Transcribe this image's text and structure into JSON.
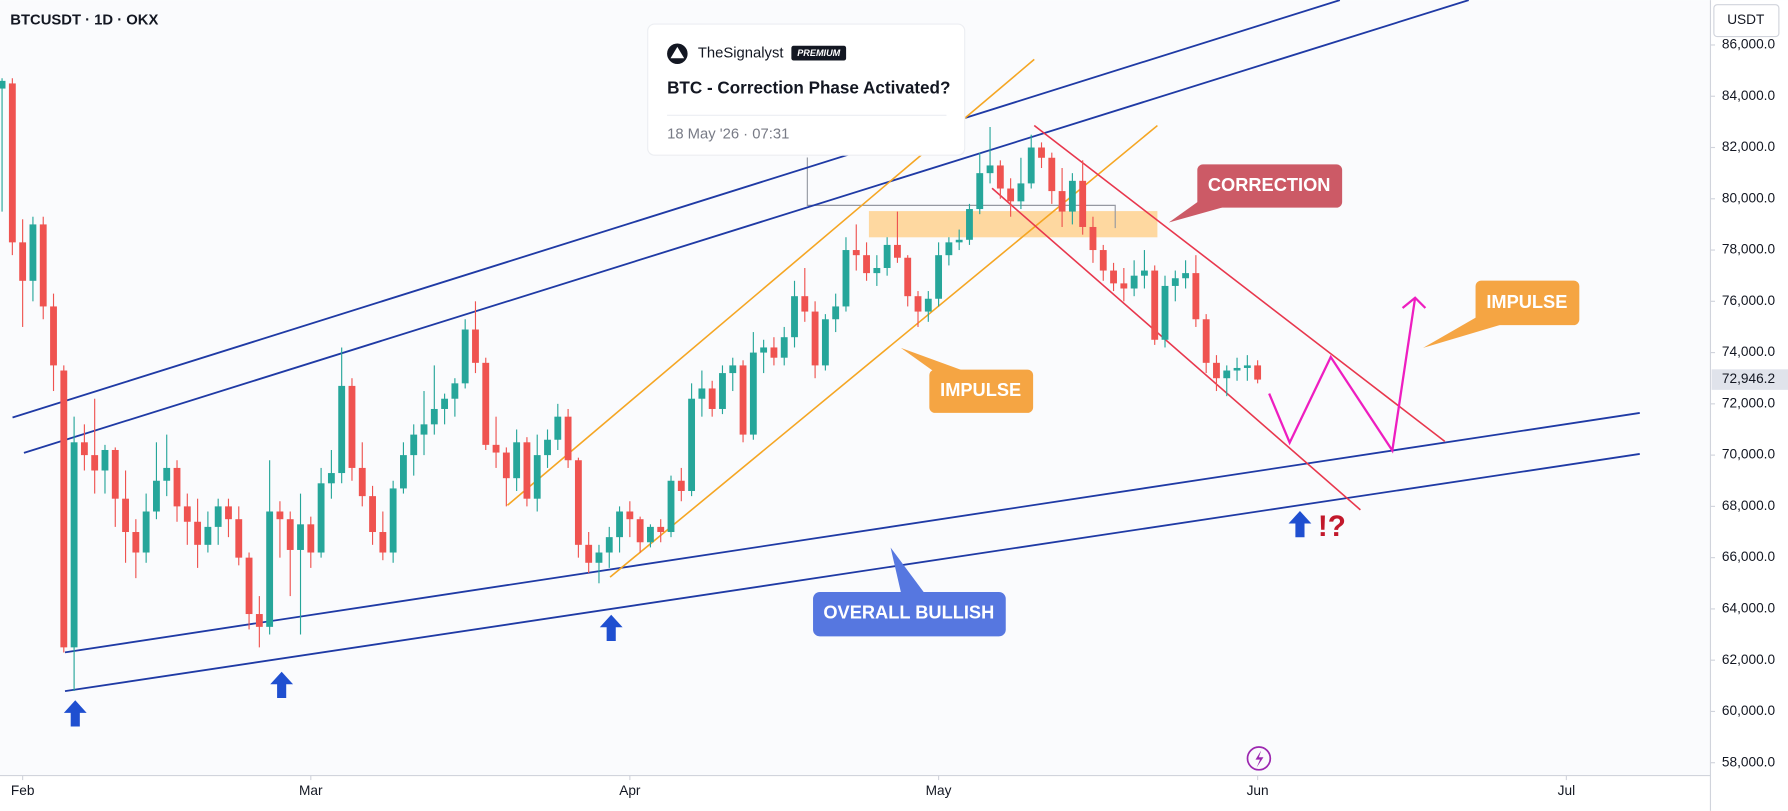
{
  "header": {
    "symbol": "BTCUSDT · 1D · OKX",
    "currency": "USDT"
  },
  "idea_card": {
    "author": "TheSignalyst",
    "badge": "PREMIUM",
    "title": "BTC - Correction Phase Activated?",
    "date": "18 May '26 · 07:31"
  },
  "chart_data": {
    "type": "candlestick",
    "x": [
      -2,
      -1,
      0,
      1,
      2,
      3,
      4,
      5,
      6,
      7,
      8,
      9,
      10,
      11,
      12,
      13,
      14,
      15,
      16,
      17,
      18,
      19,
      20,
      21,
      22,
      23,
      24,
      25,
      26,
      27,
      28,
      29,
      30,
      31,
      32,
      33,
      34,
      35,
      36,
      37,
      38,
      39,
      40,
      41,
      42,
      43,
      44,
      45,
      46,
      47,
      48,
      49,
      50,
      51,
      52,
      53,
      54,
      55,
      56,
      57,
      58,
      59,
      60,
      61,
      62,
      63,
      64,
      65,
      66,
      67,
      68,
      69,
      70,
      71,
      72,
      73,
      74,
      75,
      76,
      77,
      78,
      79,
      80,
      81,
      82,
      83,
      84,
      85,
      86,
      87,
      88,
      89,
      90,
      91,
      92,
      93,
      94,
      95,
      96,
      97,
      98,
      99,
      100,
      101,
      102,
      103,
      104,
      105,
      106,
      107,
      108,
      109,
      110,
      111,
      112,
      113,
      114,
      115,
      116,
      117,
      118,
      119,
      120
    ],
    "open": [
      84300,
      84500,
      78300,
      76800,
      79000,
      75800,
      73300,
      62500,
      70500,
      70000,
      69400,
      70200,
      68300,
      67000,
      66200,
      67800,
      69000,
      69500,
      68000,
      67400,
      66500,
      67200,
      68000,
      67500,
      66000,
      63800,
      63300,
      67800,
      67500,
      66300,
      67300,
      66200,
      68900,
      69300,
      72700,
      69500,
      68400,
      67000,
      66200,
      68700,
      70000,
      70800,
      71200,
      71800,
      72200,
      72800,
      74900,
      73600,
      70400,
      70100,
      69100,
      70500,
      68300,
      70000,
      70600,
      71500,
      69800,
      66500,
      65800,
      66200,
      66800,
      67800,
      67500,
      66600,
      67200,
      67000,
      69000,
      68600,
      72200,
      72600,
      71800,
      73200,
      73500,
      70800,
      74000,
      74200,
      73800,
      74600,
      76200,
      75600,
      73500,
      75300,
      75800,
      78000,
      77800,
      77100,
      77300,
      78200,
      77700,
      76200,
      75600,
      76100,
      77800,
      78300,
      78400,
      79600,
      81000,
      81300,
      80400,
      79900,
      80600,
      82000,
      81600,
      80300,
      79500,
      80700,
      78900,
      78000,
      77200,
      76700,
      76500,
      77000,
      77200,
      74500,
      76600,
      76900,
      77100,
      75300,
      73600,
      73000,
      73300,
      73400,
      73500
    ],
    "high": [
      84700,
      84700,
      79200,
      79300,
      79300,
      76300,
      73500,
      71500,
      71200,
      72200,
      70400,
      70300,
      69400,
      67500,
      68500,
      70500,
      70800,
      69800,
      68500,
      68300,
      67800,
      68300,
      68300,
      68000,
      66200,
      64500,
      69800,
      68200,
      67800,
      68500,
      67600,
      69500,
      70200,
      74200,
      73000,
      70500,
      68800,
      67800,
      69000,
      70500,
      71200,
      72500,
      73500,
      72400,
      73000,
      75300,
      76000,
      73800,
      71500,
      70300,
      71000,
      70700,
      70800,
      71000,
      72000,
      71800,
      69900,
      67000,
      66500,
      67200,
      68000,
      68200,
      67600,
      67300,
      67500,
      69200,
      69500,
      72800,
      73300,
      72900,
      73500,
      73800,
      73700,
      74800,
      74500,
      74600,
      75000,
      76800,
      77300,
      76000,
      75500,
      76300,
      78500,
      79000,
      78300,
      77800,
      78500,
      79500,
      77800,
      76400,
      76400,
      78300,
      78500,
      78800,
      79800,
      81800,
      82800,
      81500,
      80800,
      81600,
      82500,
      82200,
      81800,
      81200,
      81000,
      81500,
      79300,
      78200,
      77500,
      77300,
      77600,
      78000,
      77400,
      77000,
      77200,
      77600,
      77800,
      75500,
      73900,
      73500,
      73800,
      73900,
      73700
    ],
    "low": [
      79500,
      77800,
      75000,
      76000,
      75300,
      72500,
      62300,
      60800,
      69400,
      68500,
      68500,
      67200,
      65800,
      65200,
      65800,
      67500,
      68400,
      67400,
      66500,
      65600,
      66200,
      66500,
      66800,
      65700,
      63200,
      62500,
      63000,
      66000,
      64500,
      63000,
      65600,
      66000,
      68300,
      68900,
      69000,
      68000,
      66500,
      65900,
      65800,
      68500,
      69200,
      70000,
      70800,
      71200,
      71500,
      72600,
      73200,
      70200,
      69500,
      68000,
      68600,
      68000,
      67800,
      69500,
      70200,
      69500,
      66000,
      65400,
      65000,
      65600,
      66200,
      66800,
      66200,
      66400,
      66600,
      66800,
      68200,
      68400,
      71500,
      71500,
      71600,
      72500,
      70500,
      70600,
      73200,
      73500,
      73500,
      74200,
      75200,
      73000,
      73300,
      74800,
      75600,
      77200,
      76800,
      76600,
      77000,
      77500,
      75800,
      75000,
      75200,
      75800,
      77400,
      78000,
      78200,
      79400,
      80600,
      80000,
      79300,
      79600,
      80400,
      81200,
      79800,
      78900,
      79000,
      78600,
      77500,
      76800,
      76400,
      76000,
      76200,
      76500,
      74300,
      74200,
      76000,
      76500,
      75000,
      73200,
      72500,
      72300,
      72900,
      72900,
      72800
    ],
    "close": [
      84600,
      78300,
      76800,
      79000,
      75800,
      73500,
      62500,
      70500,
      70000,
      69400,
      70200,
      68300,
      67000,
      66200,
      67800,
      69000,
      69500,
      68000,
      67400,
      66500,
      67200,
      68000,
      67500,
      66000,
      63800,
      63300,
      67800,
      67500,
      66300,
      67300,
      66200,
      68900,
      69300,
      72700,
      69500,
      68400,
      67000,
      66200,
      68700,
      70000,
      70800,
      71200,
      71800,
      72200,
      72800,
      74900,
      73600,
      70400,
      70100,
      69100,
      70500,
      68300,
      70000,
      70600,
      71500,
      69800,
      66500,
      65800,
      66200,
      66800,
      67800,
      67500,
      66600,
      67200,
      67000,
      69000,
      68600,
      72200,
      72600,
      71800,
      73200,
      73500,
      70800,
      74000,
      74200,
      73800,
      74600,
      76200,
      75600,
      73500,
      75300,
      75800,
      78000,
      77800,
      77100,
      77300,
      78200,
      77700,
      76200,
      75600,
      76100,
      77800,
      78300,
      78400,
      79600,
      81000,
      81300,
      80400,
      79900,
      80600,
      82000,
      81600,
      80300,
      79500,
      80700,
      78900,
      78000,
      77200,
      76700,
      76500,
      77000,
      77200,
      74500,
      76600,
      76900,
      77100,
      75300,
      73600,
      73000,
      73300,
      73400,
      73500,
      72946.2
    ],
    "up_color": "#26a69a",
    "down_color": "#ef5350",
    "xlim": [
      -2.2,
      164
    ],
    "xticks": [
      {
        "value": 0,
        "label": "Feb"
      },
      {
        "value": 28,
        "label": "Mar"
      },
      {
        "value": 59,
        "label": "Apr"
      },
      {
        "value": 89,
        "label": "May"
      },
      {
        "value": 120,
        "label": "Jun"
      },
      {
        "value": 150,
        "label": "Jul"
      }
    ],
    "ylim": [
      57500,
      87750
    ],
    "yticks": [
      {
        "value": 58000,
        "label": "58,000.0"
      },
      {
        "value": 60000,
        "label": "60,000.0"
      },
      {
        "value": 62000,
        "label": "62,000.0"
      },
      {
        "value": 64000,
        "label": "64,000.0"
      },
      {
        "value": 66000,
        "label": "66,000.0"
      },
      {
        "value": 68000,
        "label": "68,000.0"
      },
      {
        "value": 70000,
        "label": "70,000.0"
      },
      {
        "value": 72000,
        "label": "72,000.0"
      },
      {
        "value": 74000,
        "label": "74,000.0"
      },
      {
        "value": 76000,
        "label": "76,000.0"
      },
      {
        "value": 78000,
        "label": "78,000.0"
      },
      {
        "value": 80000,
        "label": "80,000.0"
      },
      {
        "value": 82000,
        "label": "82,000.0"
      },
      {
        "value": 84000,
        "label": "84,000.0"
      },
      {
        "value": 86000,
        "label": "86,000.0"
      }
    ],
    "last_price": {
      "value": 72946.2,
      "label": "72,946.2"
    },
    "annotations": {
      "correction": "CORRECTION",
      "impulse_left": "IMPULSE",
      "impulse_right": "IMPULSE",
      "overall": "OVERALL BULLISH",
      "question": "!?"
    }
  }
}
